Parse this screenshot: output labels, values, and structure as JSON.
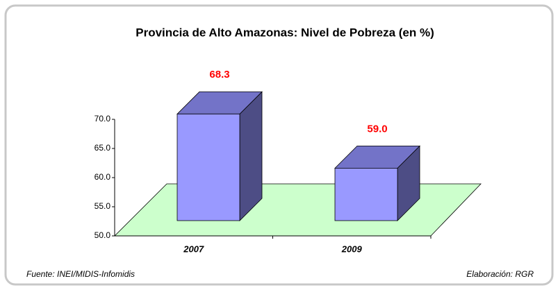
{
  "chart_data": {
    "type": "bar3d",
    "title": "Provincia de Alto Amazonas: Nivel de Pobreza (en %)",
    "categories": [
      "2007",
      "2009"
    ],
    "values": [
      68.3,
      59.0
    ],
    "value_labels": [
      "68.3",
      "59.0"
    ],
    "color": "#9999ff",
    "ylim": [
      50,
      70
    ],
    "yticks": [
      {
        "value": 50,
        "label": "50.0"
      },
      {
        "value": 55,
        "label": "55.0"
      },
      {
        "value": 60,
        "label": "60.0"
      },
      {
        "value": 65,
        "label": "65.0"
      },
      {
        "value": 70,
        "label": "70.0"
      }
    ],
    "grid": false,
    "source": "Fuente: INEI/MIDIS-Infomidis",
    "credit": "Elaboración: RGR"
  }
}
